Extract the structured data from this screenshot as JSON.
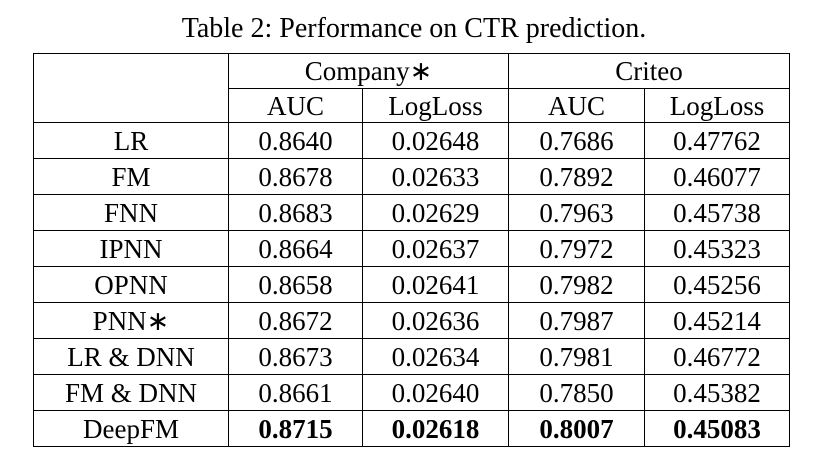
{
  "title": "Table 2: Performance on CTR prediction.",
  "table": {
    "groups": [
      "Company∗",
      "Criteo"
    ],
    "subheaders": [
      "AUC",
      "LogLoss",
      "AUC",
      "LogLoss"
    ],
    "rows": [
      {
        "label": "LR",
        "values": [
          "0.8640",
          "0.02648",
          "0.7686",
          "0.47762"
        ]
      },
      {
        "label": "FM",
        "values": [
          "0.8678",
          "0.02633",
          "0.7892",
          "0.46077"
        ]
      },
      {
        "label": "FNN",
        "values": [
          "0.8683",
          "0.02629",
          "0.7963",
          "0.45738"
        ]
      },
      {
        "label": "IPNN",
        "values": [
          "0.8664",
          "0.02637",
          "0.7972",
          "0.45323"
        ]
      },
      {
        "label": "OPNN",
        "values": [
          "0.8658",
          "0.02641",
          "0.7982",
          "0.45256"
        ]
      },
      {
        "label": "PNN∗",
        "values": [
          "0.8672",
          "0.02636",
          "0.7987",
          "0.45214"
        ]
      },
      {
        "label": "LR & DNN",
        "values": [
          "0.8673",
          "0.02634",
          "0.7981",
          "0.46772"
        ]
      },
      {
        "label": "FM & DNN",
        "values": [
          "0.8661",
          "0.02640",
          "0.7850",
          "0.45382"
        ]
      },
      {
        "label": "DeepFM",
        "values": [
          "0.8715",
          "0.02618",
          "0.8007",
          "0.45083"
        ]
      }
    ]
  }
}
